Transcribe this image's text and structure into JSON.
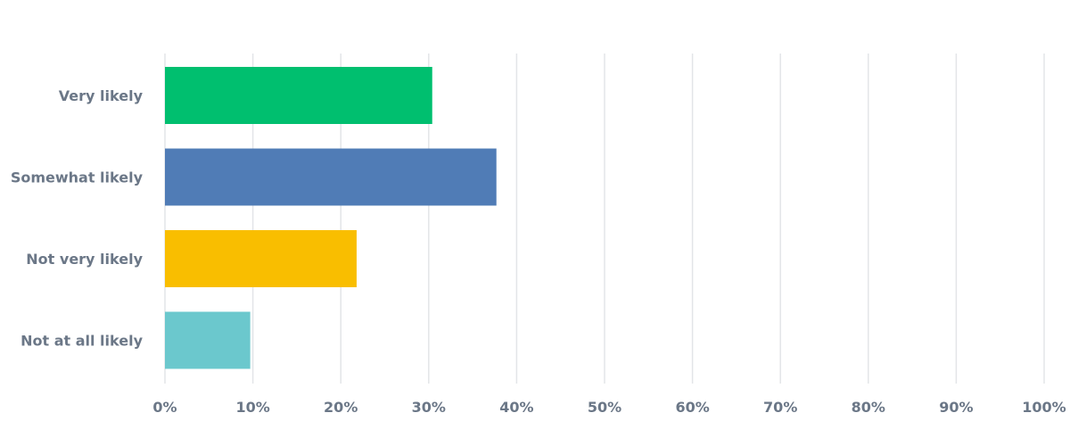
{
  "chart_data": {
    "type": "bar",
    "orientation": "horizontal",
    "categories": [
      "Very likely",
      "Somewhat likely",
      "Not very likely",
      "Not at all likely"
    ],
    "values": [
      30.4,
      37.7,
      21.8,
      9.7
    ],
    "unit": "%",
    "colors": [
      "#00bf6f",
      "#507cb6",
      "#f9be00",
      "#6bc8cd"
    ],
    "xlim": [
      0,
      100
    ],
    "xticks": [
      "0%",
      "10%",
      "20%",
      "30%",
      "40%",
      "50%",
      "60%",
      "70%",
      "80%",
      "90%",
      "100%"
    ],
    "grid": true,
    "title": "",
    "xlabel": "",
    "ylabel": ""
  }
}
